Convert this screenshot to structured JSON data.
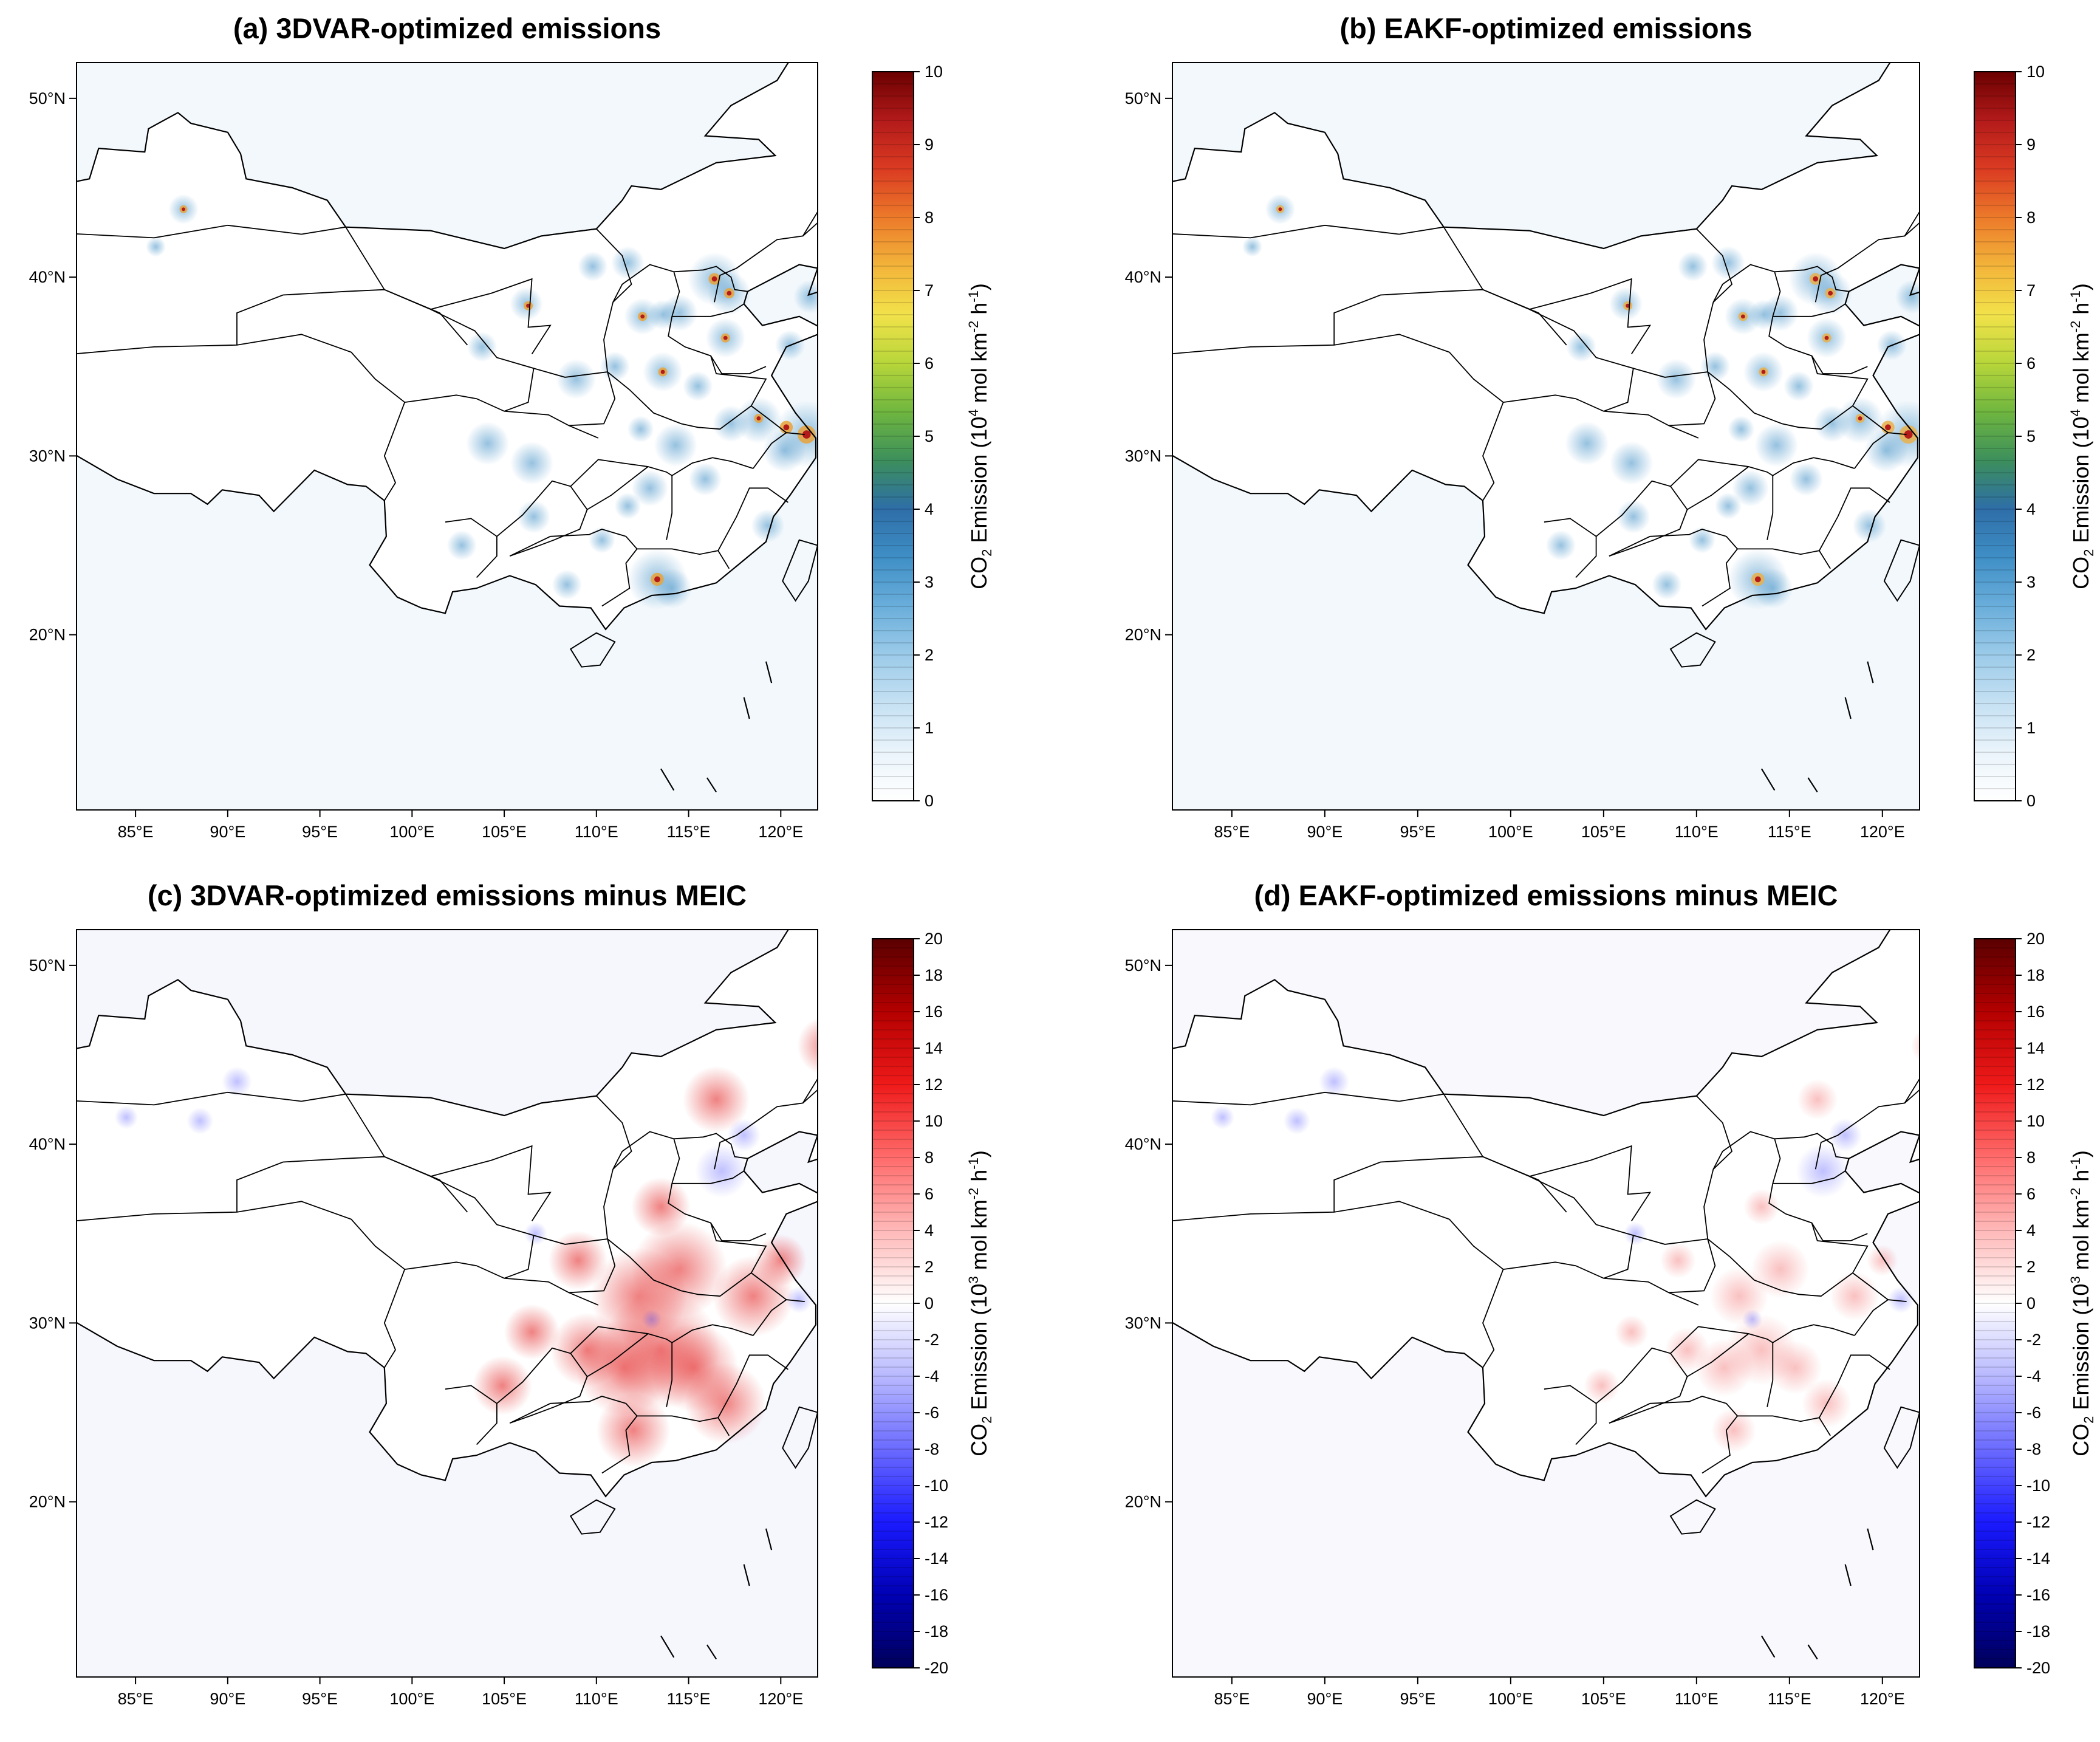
{
  "figure": {
    "panels": [
      {
        "id": "a",
        "title": "(a) 3DVAR-optimized emissions",
        "colorbar": {
          "ticks": [
            "10",
            "9",
            "8",
            "7",
            "6",
            "5",
            "4",
            "3",
            "2",
            "1",
            "0"
          ],
          "label_parts": [
            "CO",
            "2",
            " Emission (10",
            "4",
            " mol km",
            "-2",
            " h",
            "-1",
            ")"
          ]
        }
      },
      {
        "id": "b",
        "title": "(b) EAKF-optimized emissions",
        "colorbar": {
          "ticks": [
            "10",
            "9",
            "8",
            "7",
            "6",
            "5",
            "4",
            "3",
            "2",
            "1",
            "0"
          ],
          "label_parts": [
            "CO",
            "2",
            " Emission (10",
            "4",
            " mol km",
            "-2",
            " h",
            "-1",
            ")"
          ]
        }
      },
      {
        "id": "c",
        "title": "(c) 3DVAR-optimized emissions minus MEIC",
        "colorbar": {
          "ticks": [
            "20",
            "18",
            "16",
            "14",
            "12",
            "10",
            "8",
            "6",
            "4",
            "2",
            "0",
            "-2",
            "-4",
            "-6",
            "-8",
            "-10",
            "-12",
            "-14",
            "-16",
            "-18",
            "-20"
          ],
          "label_parts": [
            "CO",
            "2",
            " Emission (10",
            "3",
            " mol km",
            "-2",
            " h",
            "-1",
            ")"
          ]
        }
      },
      {
        "id": "d",
        "title": "(d) EAKF-optimized emissions minus MEIC",
        "colorbar": {
          "ticks": [
            "20",
            "18",
            "16",
            "14",
            "12",
            "10",
            "8",
            "6",
            "4",
            "2",
            "0",
            "-2",
            "-4",
            "-6",
            "-8",
            "-10",
            "-12",
            "-14",
            "-16",
            "-18",
            "-20"
          ],
          "label_parts": [
            "CO",
            "2",
            " Emission (10",
            "3",
            " mol km",
            "-2",
            " h",
            "-1",
            ")"
          ]
        }
      }
    ],
    "map_axes": {
      "lon_labels": [
        "85°E",
        "90°E",
        "95°E",
        "100°E",
        "105°E",
        "110°E",
        "115°E",
        "120°E"
      ],
      "lat_labels": [
        "50°N",
        "40°N",
        "30°N",
        "20°N"
      ]
    },
    "colors": {
      "sequential": [
        "#ffffff",
        "#eaf4fb",
        "#c6e1f3",
        "#9ccbe9",
        "#6aaedb",
        "#3f8fc6",
        "#2e6ea8",
        "#3c8f5c",
        "#6fb63f",
        "#b7d63a",
        "#f2e24a",
        "#f3b43a",
        "#ec7a2a",
        "#db3b22",
        "#b31a1a",
        "#6b0000"
      ],
      "diverging": [
        "#00005a",
        "#0000b4",
        "#1a1aff",
        "#6b6bff",
        "#b8b8ff",
        "#ffffff",
        "#ffb8b8",
        "#ff6b6b",
        "#ef1a1a",
        "#b40000",
        "#5a0000"
      ]
    }
  }
}
